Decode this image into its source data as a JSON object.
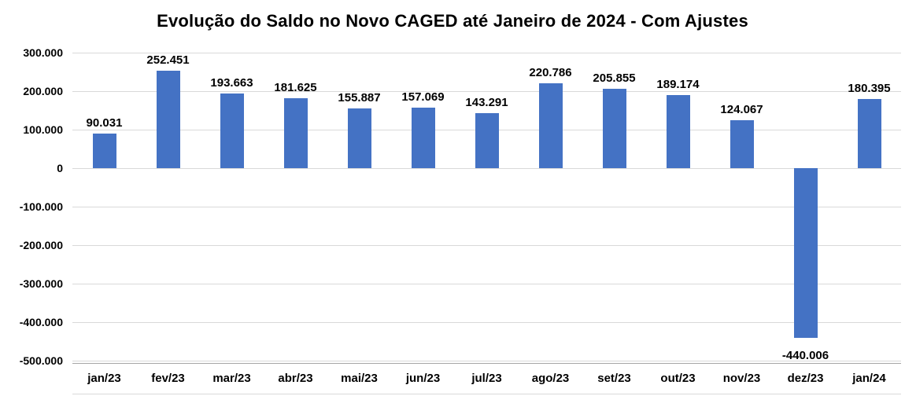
{
  "chart_data": {
    "type": "bar",
    "title": "Evolução do Saldo no Novo CAGED até Janeiro de 2024 - Com Ajustes",
    "categories": [
      "jan/23",
      "fev/23",
      "mar/23",
      "abr/23",
      "mai/23",
      "jun/23",
      "jul/23",
      "ago/23",
      "set/23",
      "out/23",
      "nov/23",
      "dez/23",
      "jan/24"
    ],
    "values": [
      90031,
      252451,
      193663,
      181625,
      155887,
      157069,
      143291,
      220786,
      205855,
      189174,
      124067,
      -440006,
      180395
    ],
    "data_labels": [
      "90.031",
      "252.451",
      "193.663",
      "181.625",
      "155.887",
      "157.069",
      "143.291",
      "220.786",
      "205.855",
      "189.174",
      "124.067",
      "-440.006",
      "180.395"
    ],
    "xlabel": "",
    "ylabel": "",
    "ylim": [
      -500000,
      300000
    ],
    "y_ticks": [
      300000,
      200000,
      100000,
      0,
      -100000,
      -200000,
      -300000,
      -400000,
      -500000
    ],
    "y_tick_labels": [
      "300.000",
      "200.000",
      "100.000",
      "0",
      "-100.000",
      "-200.000",
      "-300.000",
      "-400.000",
      "-500.000"
    ],
    "grid": true,
    "legend": "none",
    "bar_color": "#4472C4",
    "gridline_color": "#D9D9D9",
    "axis_line_color": "#A6A6A6"
  }
}
